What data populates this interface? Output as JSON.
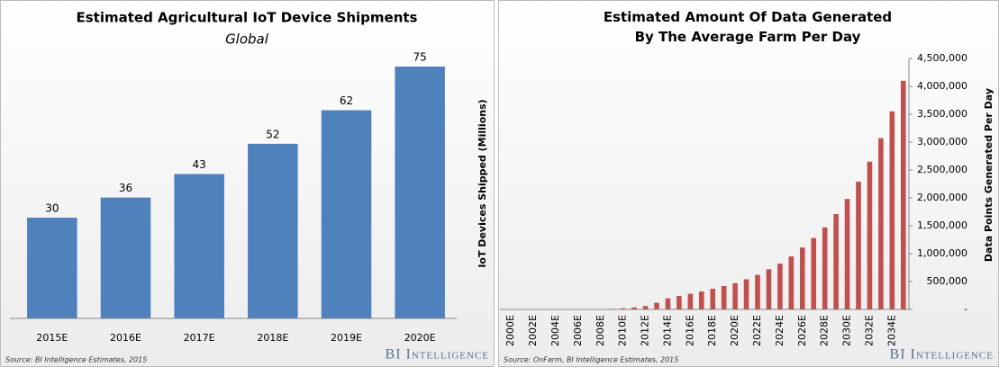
{
  "chart_data": [
    {
      "type": "bar",
      "title": "Estimated Agricultural IoT Device Shipments",
      "subtitle": "Global",
      "y_label": "IoT Devices Shipped (Millions)",
      "categories": [
        "2015E",
        "2016E",
        "2017E",
        "2018E",
        "2019E",
        "2020E"
      ],
      "values": [
        30,
        36,
        43,
        52,
        62,
        75
      ],
      "color": "#4f81bd",
      "source": "Source: BI Intelligence Estimates, 2015",
      "brand": "BI Intelligence"
    },
    {
      "type": "bar",
      "title": "Estimated Amount Of Data Generated By The Average Farm Per Day",
      "y_label": "Data Points Generated Per Day",
      "categories": [
        "2000E",
        null,
        "2002E",
        null,
        "2004E",
        null,
        "2006E",
        null,
        "2008E",
        null,
        "2010E",
        null,
        "2012E",
        null,
        "2014E",
        null,
        "2016E",
        null,
        "2018E",
        null,
        "2020E",
        null,
        "2022E",
        null,
        "2024E",
        null,
        "2026E",
        null,
        "2028E",
        null,
        "2030E",
        null,
        "2032E",
        null,
        "2034E",
        null
      ],
      "values": [
        0,
        0,
        0,
        0,
        0,
        0,
        0,
        0,
        5000,
        10000,
        20000,
        35000,
        60000,
        120000,
        200000,
        240000,
        280000,
        320000,
        370000,
        420000,
        470000,
        540000,
        620000,
        720000,
        820000,
        950000,
        1110000,
        1280000,
        1470000,
        1710000,
        1980000,
        2290000,
        2650000,
        3070000,
        3550000,
        4100000
      ],
      "color": "#c0504d",
      "ylim": [
        0,
        4500000
      ],
      "yticks": [
        {
          "value": 0,
          "label": "-"
        },
        {
          "value": 500000,
          "label": "500,000"
        },
        {
          "value": 1000000,
          "label": "1,000,000"
        },
        {
          "value": 1500000,
          "label": "1,500,000"
        },
        {
          "value": 2000000,
          "label": "2,000,000"
        },
        {
          "value": 2500000,
          "label": "2,500,000"
        },
        {
          "value": 3000000,
          "label": "3,000,000"
        },
        {
          "value": 3500000,
          "label": "3,500,000"
        },
        {
          "value": 4000000,
          "label": "4,000,000"
        },
        {
          "value": 4500000,
          "label": "4,500,000"
        }
      ],
      "source": "Source: OnFarm, BI Intelligence Estimates, 2015",
      "brand": "BI Intelligence"
    }
  ]
}
